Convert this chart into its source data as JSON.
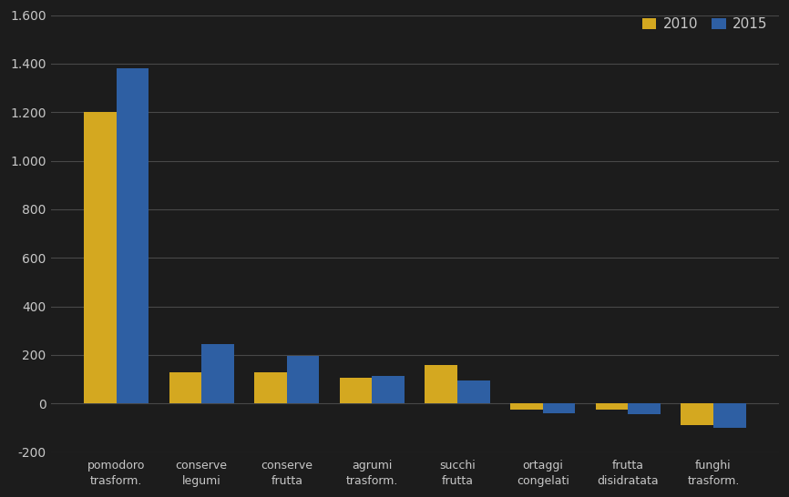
{
  "categories": [
    "pomodoro\ntrasform.",
    "conserve\nlegumi",
    "conserve\nfrutta",
    "agrumi\ntrasform.",
    "succhi\nfrutta",
    "ortaggi\ncongelati",
    "frutta\ndisidratata",
    "funghi\ntrasform."
  ],
  "values_2010": [
    1200,
    130,
    130,
    105,
    160,
    -25,
    -25,
    -90
  ],
  "values_2015": [
    1380,
    245,
    195,
    115,
    95,
    -40,
    -45,
    -100
  ],
  "color_2010": "#D4A820",
  "color_2015": "#2E5FA3",
  "legend_labels": [
    "2010",
    "2015"
  ],
  "ylim": [
    -200,
    1600
  ],
  "yticks": [
    -200,
    0,
    200,
    400,
    600,
    800,
    1000,
    1200,
    1400,
    1600
  ],
  "ytick_labels": [
    "-200",
    "0",
    "200",
    "400",
    "600",
    "800",
    "1.000",
    "1.200",
    "1.400",
    "1.600"
  ],
  "background_color": "#1C1C1C",
  "text_color": "#C8C8C8",
  "grid_color": "#484848",
  "bar_width": 0.38,
  "figsize": [
    8.66,
    5.46
  ],
  "dpi": 100
}
